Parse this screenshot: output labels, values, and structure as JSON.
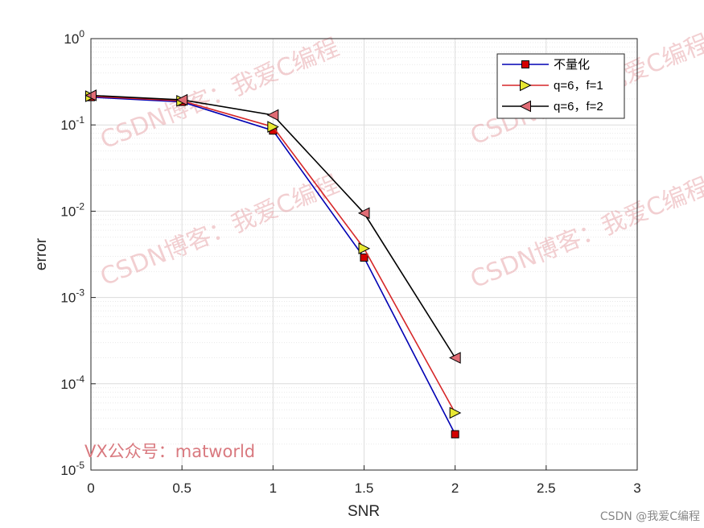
{
  "chart_data": {
    "type": "line",
    "title": "",
    "xlabel": "SNR",
    "ylabel": "error",
    "xlim": [
      0,
      3
    ],
    "ylim": [
      1e-05,
      1
    ],
    "yscale": "log",
    "grid": true,
    "legend_position": "top-right",
    "x_ticks": [
      {
        "value": 0,
        "label": "0"
      },
      {
        "value": 0.5,
        "label": "0.5"
      },
      {
        "value": 1,
        "label": "1"
      },
      {
        "value": 1.5,
        "label": "1.5"
      },
      {
        "value": 2,
        "label": "2"
      },
      {
        "value": 2.5,
        "label": "2.5"
      },
      {
        "value": 3,
        "label": "3"
      }
    ],
    "y_ticks": [
      {
        "exp": 0,
        "base": "10",
        "sup": "0"
      },
      {
        "exp": -1,
        "base": "10",
        "sup": "-1"
      },
      {
        "exp": -2,
        "base": "10",
        "sup": "-2"
      },
      {
        "exp": -3,
        "base": "10",
        "sup": "-3"
      },
      {
        "exp": -4,
        "base": "10",
        "sup": "-4"
      },
      {
        "exp": -5,
        "base": "10",
        "sup": "-5"
      }
    ],
    "x": [
      0,
      0.5,
      1,
      1.5,
      2
    ],
    "series": [
      {
        "name": "不量化",
        "color": "#0000b3",
        "marker": "square",
        "marker_fill": "#d40000",
        "values": [
          0.21,
          0.185,
          0.086,
          0.0029,
          2.6e-05
        ]
      },
      {
        "name": "q=6，f=1",
        "color": "#d62728",
        "marker": "triangle-right",
        "marker_fill": "#e8e832",
        "values": [
          0.215,
          0.19,
          0.095,
          0.0037,
          4.6e-05
        ]
      },
      {
        "name": "q=6，f=2",
        "color": "#000000",
        "marker": "triangle-left",
        "marker_fill": "#e06c75",
        "values": [
          0.22,
          0.195,
          0.13,
          0.0095,
          0.0002
        ]
      }
    ]
  },
  "watermarks": {
    "site_text": "CSDN博客：我爱C编程",
    "vx_text": "VX公众号：matworld",
    "corner_text": "CSDN @我爱C编程"
  },
  "colors": {
    "axis": "#262626",
    "grid_major": "#dcdcdc",
    "grid_minor": "#e9e9e9",
    "watermark": "#e8a8ad"
  }
}
